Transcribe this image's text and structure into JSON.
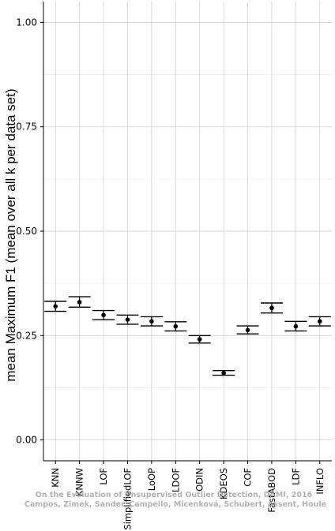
{
  "chart_data": {
    "type": "scatter",
    "title": "",
    "xlabel": "",
    "ylabel": "mean Maximum F1 (mean over all k per data set)",
    "ylim": [
      -0.05,
      1.05
    ],
    "yticks": [
      "0.00",
      "0.25",
      "0.50",
      "0.75",
      "1.00"
    ],
    "grid": true,
    "categories": [
      "KNN",
      "KNNW",
      "LOF",
      "SimplifiedLOF",
      "LoOP",
      "LDOF",
      "ODIN",
      "KDEOS",
      "COF",
      "FastABOD",
      "LDF",
      "INFLO"
    ],
    "series": [
      {
        "means": [
          0.32,
          0.33,
          0.299,
          0.288,
          0.284,
          0.272,
          0.241,
          0.16,
          0.263,
          0.316,
          0.272,
          0.284
        ],
        "lower": [
          0.308,
          0.318,
          0.288,
          0.277,
          0.273,
          0.261,
          0.232,
          0.155,
          0.254,
          0.304,
          0.261,
          0.273
        ],
        "upper": [
          0.332,
          0.343,
          0.31,
          0.299,
          0.295,
          0.283,
          0.25,
          0.166,
          0.273,
          0.328,
          0.284,
          0.295
        ]
      }
    ]
  },
  "watermark": {
    "line1": "On the Evaluation of Unsupervised Outlier Detection, DAMI, 2016",
    "line2": "Campos, Zimek, Sander, Campello, Micenková, Schubert, Assent, Houle"
  }
}
